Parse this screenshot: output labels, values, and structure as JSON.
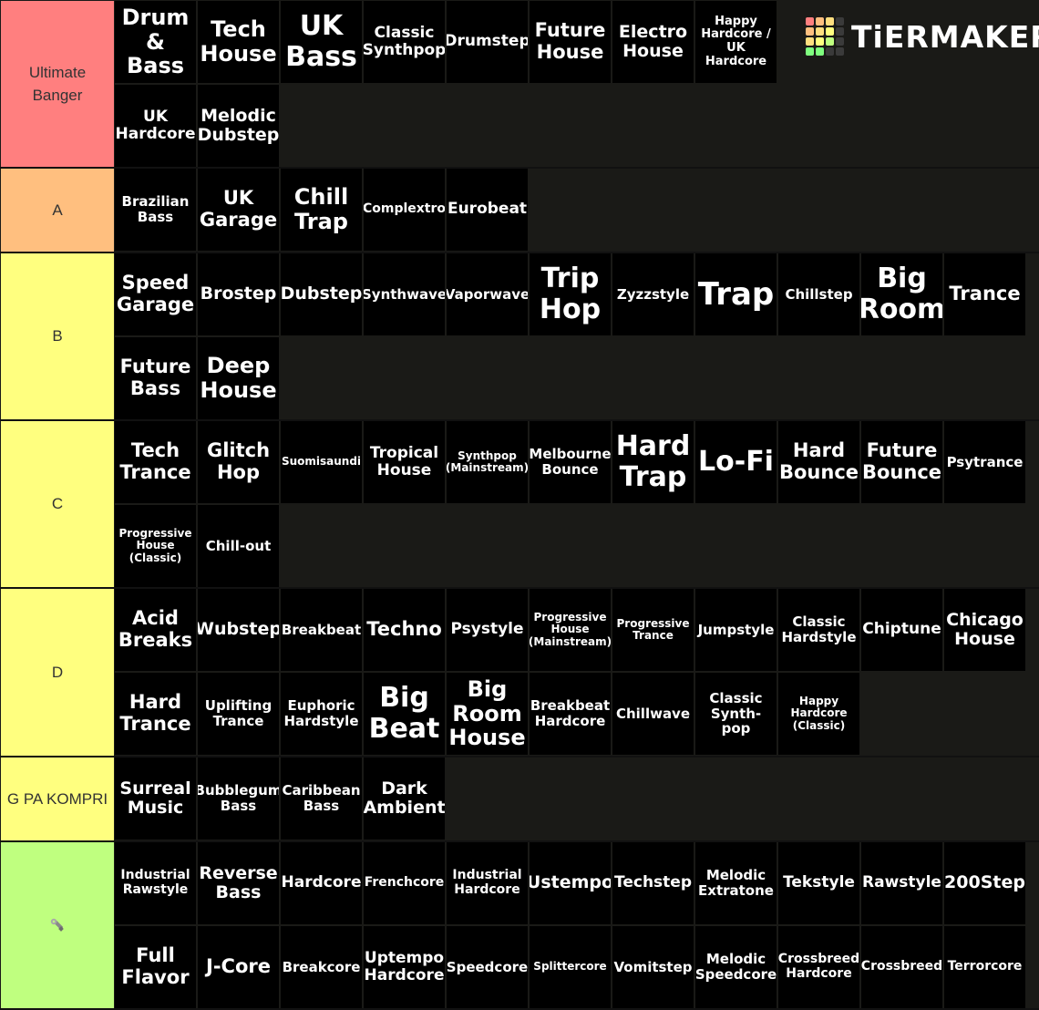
{
  "logo": {
    "text": "TiERMAKER",
    "grid_colors": [
      "#ff7f7f",
      "#ffbf7f",
      "#ffdf7f",
      "#3a3a3a",
      "#ffbf7f",
      "#ffdf7f",
      "#ffff7f",
      "#3a3a3a",
      "#ffdf7f",
      "#ffff7f",
      "#bfff7f",
      "#3a3a3a",
      "#7fff7f",
      "#7fff7f",
      "#3a3a3a",
      "#3a3a3a"
    ]
  },
  "tiers": [
    {
      "label": "Ultimate Banger",
      "color": "#ff7f7f",
      "rows": 2,
      "items": [
        "Drum & Bass",
        "Tech House",
        "UK Bass",
        "Classic Synthpop",
        "Drumstep",
        "Future House",
        "Electro House",
        "Happy Hardcore / UK Hardcore",
        "UK Hardcore",
        "Melodic Dubstep"
      ]
    },
    {
      "label": "A",
      "color": "#ffbf7f",
      "rows": 1,
      "items": [
        "Brazilian Bass",
        "UK Garage",
        "Chill Trap",
        "Complextro",
        "Eurobeat"
      ]
    },
    {
      "label": "B",
      "color": "#ffff7f",
      "rows": 2,
      "items": [
        "Speed Garage",
        "Brostep",
        "Dubstep",
        "Synthwave",
        "Vaporwave",
        "Trip Hop",
        "Zyzzstyle",
        "Trap",
        "Chillstep",
        "Big Room",
        "Trance",
        "Future Bass",
        "Deep House"
      ]
    },
    {
      "label": "C",
      "color": "#ffff7f",
      "rows": 2,
      "items": [
        "Tech Trance",
        "Glitch Hop",
        "Suomisaundi",
        "Tropical House",
        "Synthpop (Mainstream)",
        "Melbourne Bounce",
        "Hard Trap",
        "Lo-Fi",
        "Hard Bounce",
        "Future Bounce",
        "Psytrance",
        "Progressive House (Classic)",
        "Chill-out"
      ]
    },
    {
      "label": "D",
      "color": "#ffff7f",
      "rows": 2,
      "items": [
        "Acid Breaks",
        "Wubstep",
        "Breakbeat",
        "Techno",
        "Psystyle",
        "Progressive House (Mainstream)",
        "Progressive Trance",
        "Jumpstyle",
        "Classic Hardstyle",
        "Chiptune",
        "Chicago House",
        "Hard Trance",
        "Uplifting Trance",
        "Euphoric Hardstyle",
        "Big Beat",
        "Big Room House",
        "Breakbeat Hardcore",
        "Chillwave",
        "Classic Synth-pop",
        "Happy Hardcore (Classic)"
      ]
    },
    {
      "label": "G PA KOMPRI",
      "color": "#ffff7f",
      "rows": 1,
      "items": [
        "Surreal Music",
        "Bubblegum Bass",
        "Caribbean Bass",
        "Dark Ambient"
      ]
    },
    {
      "label": "",
      "color": "#bfff7f",
      "icon": "wrench-icon",
      "rows": 2,
      "items": [
        "Industrial Rawstyle",
        "Reverse Bass",
        "Hardcore",
        "Frenchcore",
        "Industrial Hardcore",
        "Ustempo",
        "Techstep",
        "Melodic Extratone",
        "Tekstyle",
        "Rawstyle",
        "200Step",
        "Full Flavor",
        "J-Core",
        "Breakcore",
        "Uptempo Hardcore",
        "Speedcore",
        "Splittercore",
        "Vomitstep",
        "Melodic Speedcore",
        "Crossbreed Hardcore",
        "Crossbreed",
        "Terrorcore"
      ]
    }
  ]
}
